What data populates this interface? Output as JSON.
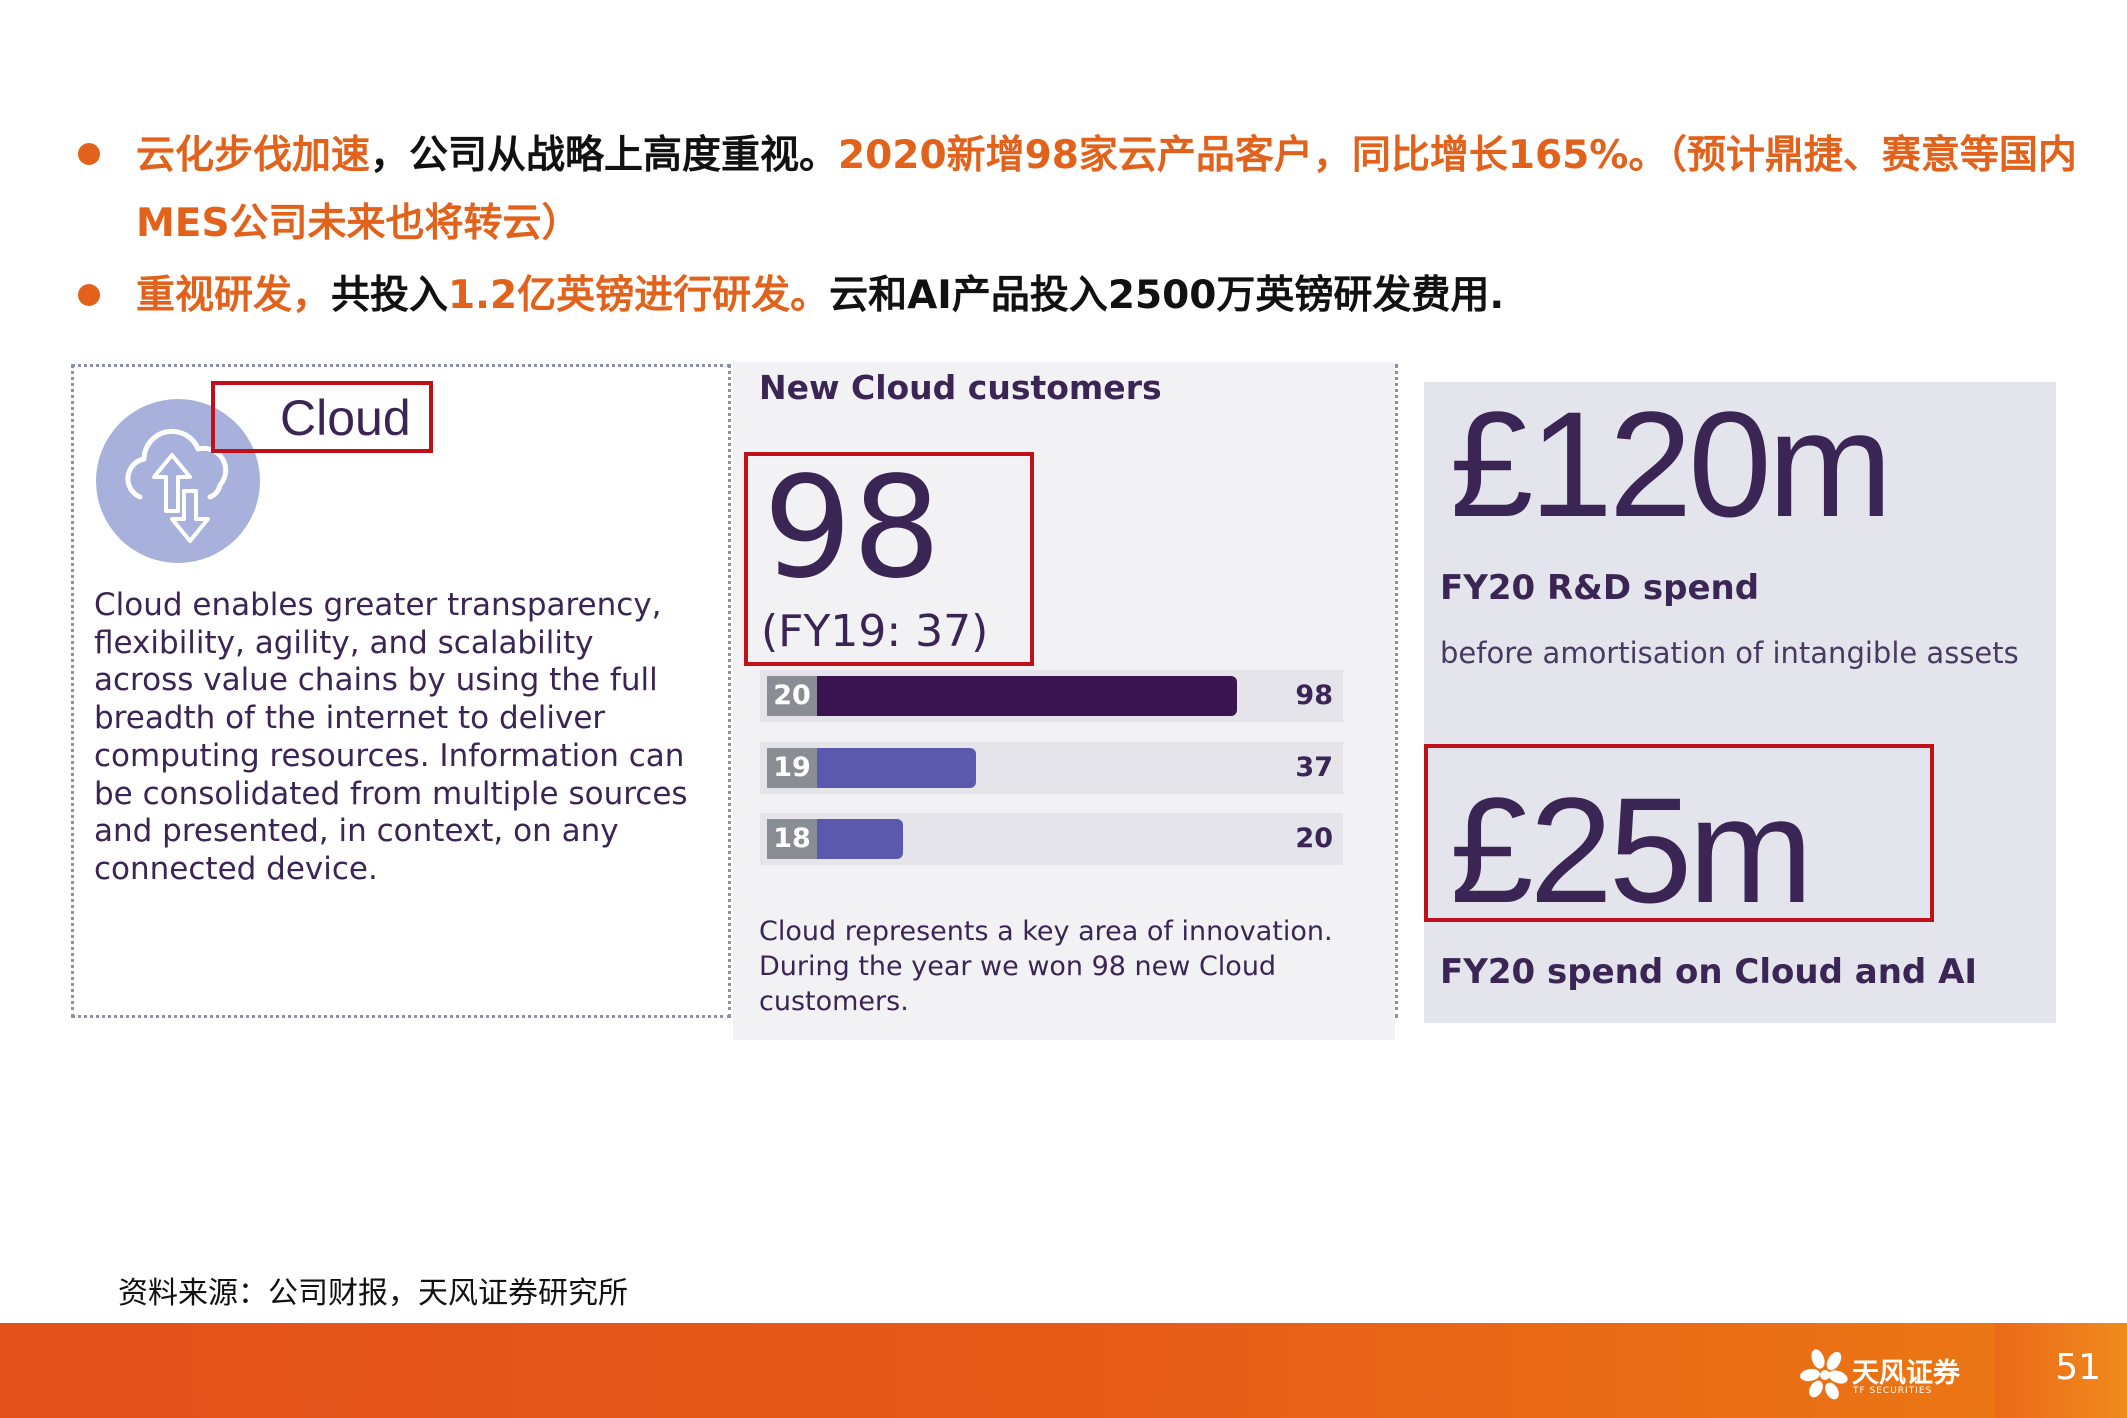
{
  "bullets": [
    {
      "lines": [
        [
          {
            "text": "云化步伐加速",
            "tone": "orange"
          },
          {
            "text": "，公司从战略上高度重视。",
            "tone": "black"
          },
          {
            "text": "2020新增98家云产品客户，同比增长165%。（预计鼎捷、赛意等国内",
            "tone": "orange"
          }
        ],
        [
          {
            "text": "MES公司未来也将转云）",
            "tone": "orange"
          }
        ]
      ]
    },
    {
      "lines": [
        [
          {
            "text": "重视研发，",
            "tone": "orange"
          },
          {
            "text": "共投入",
            "tone": "black"
          },
          {
            "text": "1.2亿英镑进行研发。",
            "tone": "orange"
          },
          {
            "text": "云和AI产品投入2500万英镑研发费用.",
            "tone": "black"
          }
        ]
      ]
    }
  ],
  "cloud_panel": {
    "icon": "cloud-upload-download-icon",
    "title": "Cloud",
    "description": "Cloud enables greater transparency, flexibility, agility, and scalability across value chains by using the full breadth of the internet to deliver computing resources. Information can be consolidated from multiple sources and presented, in context, on any connected device."
  },
  "customers_panel": {
    "heading": "New Cloud customers",
    "value": "98",
    "previous": "(FY19: 37)",
    "caption": "Cloud represents a key area of innovation. During the year we won 98 new Cloud customers."
  },
  "chart_data": {
    "type": "bar",
    "orientation": "horizontal",
    "categories": [
      "20",
      "19",
      "18"
    ],
    "values": [
      98,
      37,
      20
    ],
    "colors": [
      "#3a1450",
      "#5a59ad",
      "#5a59ad"
    ]
  },
  "spend_panel": {
    "rd_value": "£120m",
    "rd_label": "FY20 R&D spend",
    "rd_note": "before amortisation of intangible assets",
    "ai_value": "£25m",
    "ai_label": "FY20 spend on Cloud and AI"
  },
  "source": "资料来源：公司财报，天风证券研究所",
  "footer": {
    "logo_name": "天风证券",
    "logo_sub": "TF SECURITIES",
    "page_number": "51"
  },
  "colors": {
    "accent_orange": "#e2621c",
    "highlight_red": "#c0111a",
    "brand_purple": "#3b2554",
    "bar_dark": "#3a1450",
    "bar_light": "#5a59ad"
  }
}
